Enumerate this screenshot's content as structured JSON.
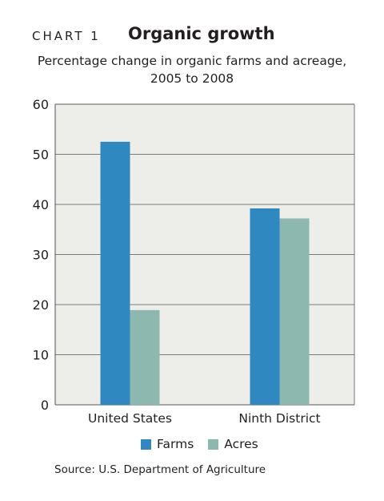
{
  "header": {
    "chart_label": "CHART 1",
    "title": "Organic growth",
    "subtitle_line1": "Percentage change in organic farms and acreage,",
    "subtitle_line2": "2005 to 2008"
  },
  "source": "Source: U.S. Department of Agriculture",
  "colors": {
    "farms": "#2f88bf",
    "acres": "#8cb8b0",
    "plot_bg": "#ededea",
    "grid": "#555555",
    "axis": "#555555"
  },
  "chart_data": {
    "type": "bar",
    "title": "Organic growth",
    "subtitle": "Percentage change in organic farms and acreage, 2005 to 2008",
    "categories": [
      "United States",
      "Ninth District"
    ],
    "series": [
      {
        "name": "Farms",
        "values": [
          52.5,
          39.2
        ]
      },
      {
        "name": "Acres",
        "values": [
          18.9,
          37.2
        ]
      }
    ],
    "ylim": [
      0,
      60
    ],
    "yticks": [
      "0",
      "10",
      "20",
      "30",
      "40",
      "50",
      "60"
    ],
    "xlabel": "",
    "ylabel": "",
    "grid": true,
    "legend": "bottom"
  }
}
